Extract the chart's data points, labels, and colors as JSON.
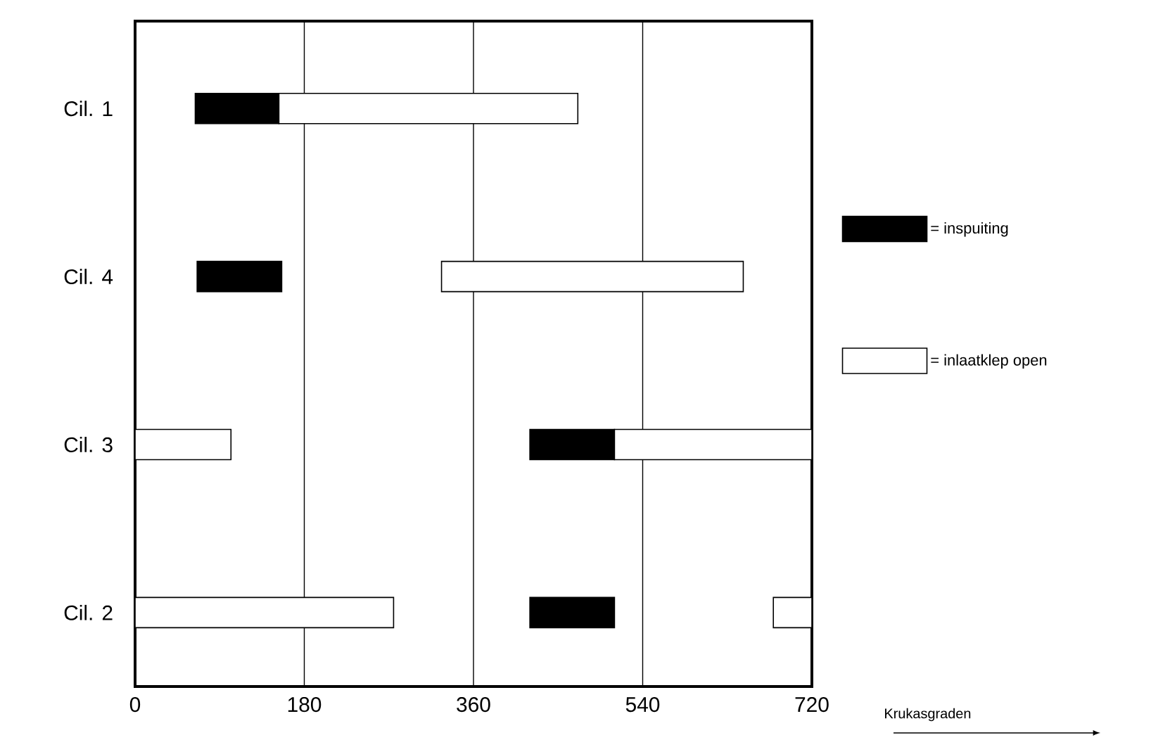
{
  "chart_data": {
    "type": "bar",
    "orientation": "horizontal",
    "xlabel": "Krukasgraden",
    "categories": [
      "Cil. 1",
      "Cil. 4",
      "Cil. 3",
      "Cil. 2"
    ],
    "series": [
      {
        "name": "= inspuiting",
        "color": "#000000",
        "base": [
          64,
          66,
          420,
          420
        ],
        "values": [
          89,
          90,
          90,
          90
        ]
      },
      {
        "name": "= inlaatklep open",
        "color": "#ffffff",
        "base": [
          153,
          326,
          0,
          0
        ],
        "values": [
          318,
          321,
          102,
          275
        ]
      },
      {
        "color": "#ffffff",
        "base": [
          null,
          null,
          510,
          679
        ],
        "values": [
          null,
          null,
          210,
          41
        ]
      }
    ],
    "xlim": [
      0,
      720
    ],
    "xticks": [
      0,
      180,
      360,
      540,
      720
    ],
    "grid": "x",
    "legend": "right"
  }
}
